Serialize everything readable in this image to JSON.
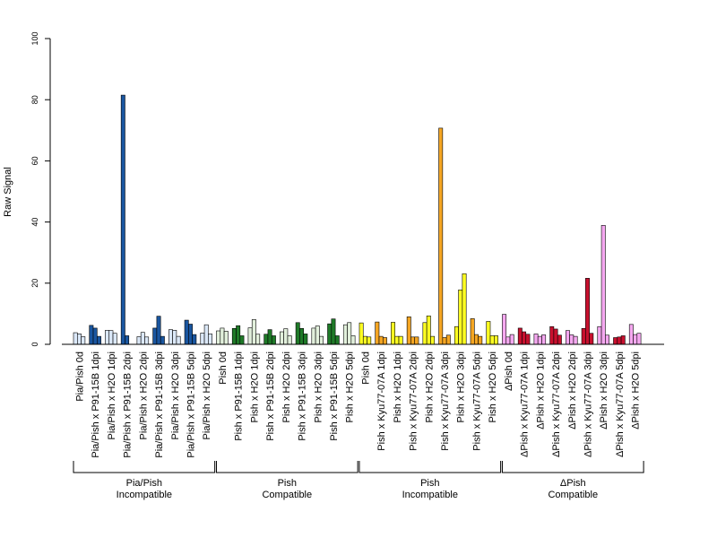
{
  "chart_data": {
    "type": "bar",
    "ylabel": "Raw Signal",
    "ylim": [
      0,
      100
    ],
    "yticks": [
      0,
      20,
      40,
      60,
      80,
      100
    ],
    "bars_per_category": 3,
    "categories": [
      {
        "label": "Pia/Pish 0d",
        "color": "#dbe8f8",
        "values": [
          3.8,
          3.4,
          2.5
        ]
      },
      {
        "label": "Pia/Pish x P91-15B 1dpi",
        "color": "#1a56a0",
        "values": [
          6.2,
          5.3,
          2.6
        ]
      },
      {
        "label": "Pia/Pish x H2O 1dpi",
        "color": "#dbe8f8",
        "values": [
          4.6,
          4.5,
          3.6
        ]
      },
      {
        "label": "Pia/Pish x P91-15B 2dpi",
        "color": "#1a56a0",
        "values": [
          81.5,
          2.8,
          0
        ]
      },
      {
        "label": "Pia/Pish x H2O 2dpi",
        "color": "#dbe8f8",
        "values": [
          2.5,
          3.9,
          2.4
        ]
      },
      {
        "label": "Pia/Pish x P91-15B 3dpi",
        "color": "#1a56a0",
        "values": [
          5.3,
          9.2,
          2.6
        ]
      },
      {
        "label": "Pia/Pish x H2O 3dpi",
        "color": "#dbe8f8",
        "values": [
          4.8,
          4.6,
          2.6
        ]
      },
      {
        "label": "Pia/Pish x P91-15B 5dpi",
        "color": "#1a56a0",
        "values": [
          7.9,
          6.6,
          3.2
        ]
      },
      {
        "label": "Pia/Pish x H2O 5dpi",
        "color": "#dbe8f8",
        "values": [
          3.7,
          6.4,
          3.4
        ]
      },
      {
        "label": "Pish 0d",
        "color": "#e2f0dc",
        "values": [
          4.4,
          5.3,
          4.3
        ]
      },
      {
        "label": "Pish x P91-15B 1dpi",
        "color": "#1f7a28",
        "values": [
          5.2,
          6.1,
          2.8
        ]
      },
      {
        "label": "Pish x H2O 1dpi",
        "color": "#e2f0dc",
        "values": [
          5.4,
          8.1,
          3.3
        ]
      },
      {
        "label": "Pish x P91-15B 2dpi",
        "color": "#1f7a28",
        "values": [
          3.3,
          4.8,
          2.8
        ]
      },
      {
        "label": "Pish x H2O 2dpi",
        "color": "#e2f0dc",
        "values": [
          4.1,
          5.1,
          2.8
        ]
      },
      {
        "label": "Pish x P91-15B 3dpi",
        "color": "#1f7a28",
        "values": [
          7.1,
          5.2,
          3.4
        ]
      },
      {
        "label": "Pish x H2O 3dpi",
        "color": "#e2f0dc",
        "values": [
          5.3,
          6.0,
          2.6
        ]
      },
      {
        "label": "Pish x P91-15B 5dpi",
        "color": "#1f7a28",
        "values": [
          6.7,
          8.3,
          2.8
        ]
      },
      {
        "label": "Pish x H2O 5dpi",
        "color": "#e2f0dc",
        "values": [
          6.4,
          7.1,
          2.8
        ]
      },
      {
        "label": "Pish 0d",
        "color": "#ffff22",
        "values": [
          7.0,
          2.6,
          2.4
        ]
      },
      {
        "label": "Pish x Kyu77-07A 1dpi",
        "color": "#f5a623",
        "values": [
          7.3,
          2.6,
          2.2
        ]
      },
      {
        "label": "Pish x H2O 1dpi",
        "color": "#ffff22",
        "values": [
          7.2,
          2.6,
          2.6
        ]
      },
      {
        "label": "Pish x Kyu77-07A 2dpi",
        "color": "#f5a623",
        "values": [
          9.0,
          2.4,
          2.4
        ]
      },
      {
        "label": "Pish x H2O 2dpi",
        "color": "#ffff22",
        "values": [
          7.1,
          9.3,
          2.6
        ]
      },
      {
        "label": "Pish x Kyu77-07A 3dpi",
        "color": "#f5a623",
        "values": [
          70.7,
          2.2,
          3.0
        ]
      },
      {
        "label": "Pish x H2O 3dpi",
        "color": "#ffff22",
        "values": [
          5.8,
          17.8,
          23.1
        ]
      },
      {
        "label": "Pish x Kyu77-07A 5dpi",
        "color": "#f5a623",
        "values": [
          8.4,
          3.2,
          2.6
        ]
      },
      {
        "label": "Pish x H2O 5dpi",
        "color": "#ffff22",
        "values": [
          7.5,
          2.8,
          2.8
        ]
      },
      {
        "label": "ΔPish 0d",
        "color": "#f5a8f0",
        "values": [
          9.8,
          2.4,
          3.2
        ]
      },
      {
        "label": "ΔPish x Kyu77-07A 1dpi",
        "color": "#c8102e",
        "values": [
          5.3,
          4.1,
          3.3
        ]
      },
      {
        "label": "ΔPish x H2O 1dpi",
        "color": "#f5a8f0",
        "values": [
          3.4,
          2.6,
          3.1
        ]
      },
      {
        "label": "ΔPish x Kyu77-07A 2dpi",
        "color": "#c8102e",
        "values": [
          5.8,
          5.0,
          3.0
        ]
      },
      {
        "label": "ΔPish x H2O 2dpi",
        "color": "#f5a8f0",
        "values": [
          4.5,
          3.1,
          2.6
        ]
      },
      {
        "label": "ΔPish x Kyu77-07A 3dpi",
        "color": "#c8102e",
        "values": [
          5.2,
          21.6,
          3.6
        ]
      },
      {
        "label": "ΔPish x H2O 3dpi",
        "color": "#f5a8f0",
        "values": [
          5.8,
          38.9,
          3.0
        ]
      },
      {
        "label": "ΔPish x Kyu77-07A 5dpi",
        "color": "#c8102e",
        "values": [
          2.2,
          2.4,
          2.8
        ]
      },
      {
        "label": "ΔPish x H2O 5dpi",
        "color": "#f5a8f0",
        "values": [
          6.5,
          3.2,
          3.6
        ]
      }
    ],
    "groups": [
      {
        "line1": "Pia/Pish",
        "line2": "Incompatible",
        "start": 0,
        "end": 8
      },
      {
        "line1": "Pish",
        "line2": "Compatible",
        "start": 9,
        "end": 17
      },
      {
        "line1": "Pish",
        "line2": "Incompatible",
        "start": 18,
        "end": 26
      },
      {
        "line1": "ΔPish",
        "line2": "Compatible",
        "start": 27,
        "end": 35
      }
    ],
    "grid": false,
    "legend": "none"
  }
}
